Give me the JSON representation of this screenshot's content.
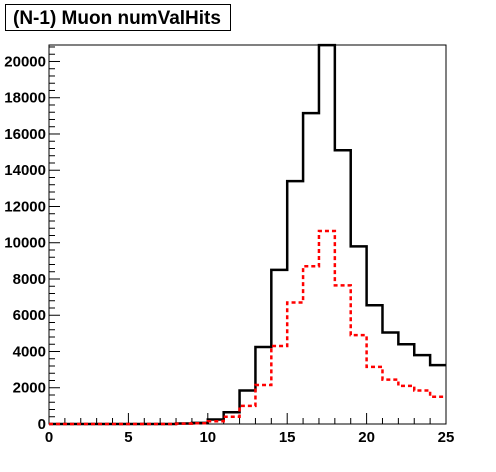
{
  "chart_data": {
    "type": "step",
    "title": "(N-1) Muon numValHits",
    "xlabel": "",
    "ylabel": "",
    "xlim": [
      0,
      25
    ],
    "ylim": [
      0,
      21000
    ],
    "x_ticks": [
      0,
      5,
      10,
      15,
      20,
      25
    ],
    "y_ticks": [
      0,
      2000,
      4000,
      6000,
      8000,
      10000,
      12000,
      14000,
      16000,
      18000,
      20000
    ],
    "bin_edges": [
      0,
      1,
      2,
      3,
      4,
      5,
      6,
      7,
      8,
      9,
      10,
      11,
      12,
      13,
      14,
      15,
      16,
      17,
      18,
      19,
      20,
      21,
      22,
      23,
      24,
      25
    ],
    "grid": false,
    "series": [
      {
        "color": "#000000",
        "style": "solid",
        "values": [
          0,
          0,
          0,
          0,
          0,
          0,
          0,
          0,
          30,
          60,
          250,
          650,
          1850,
          4250,
          8500,
          13400,
          17150,
          20900,
          15100,
          9800,
          6550,
          5050,
          4400,
          3800,
          3250
        ]
      },
      {
        "color": "#ff0000",
        "style": "dashed",
        "values": [
          0,
          0,
          0,
          0,
          0,
          0,
          0,
          0,
          20,
          40,
          150,
          400,
          1000,
          2150,
          4300,
          6700,
          8700,
          10650,
          7650,
          4900,
          3150,
          2450,
          2100,
          1850,
          1500
        ]
      }
    ]
  }
}
